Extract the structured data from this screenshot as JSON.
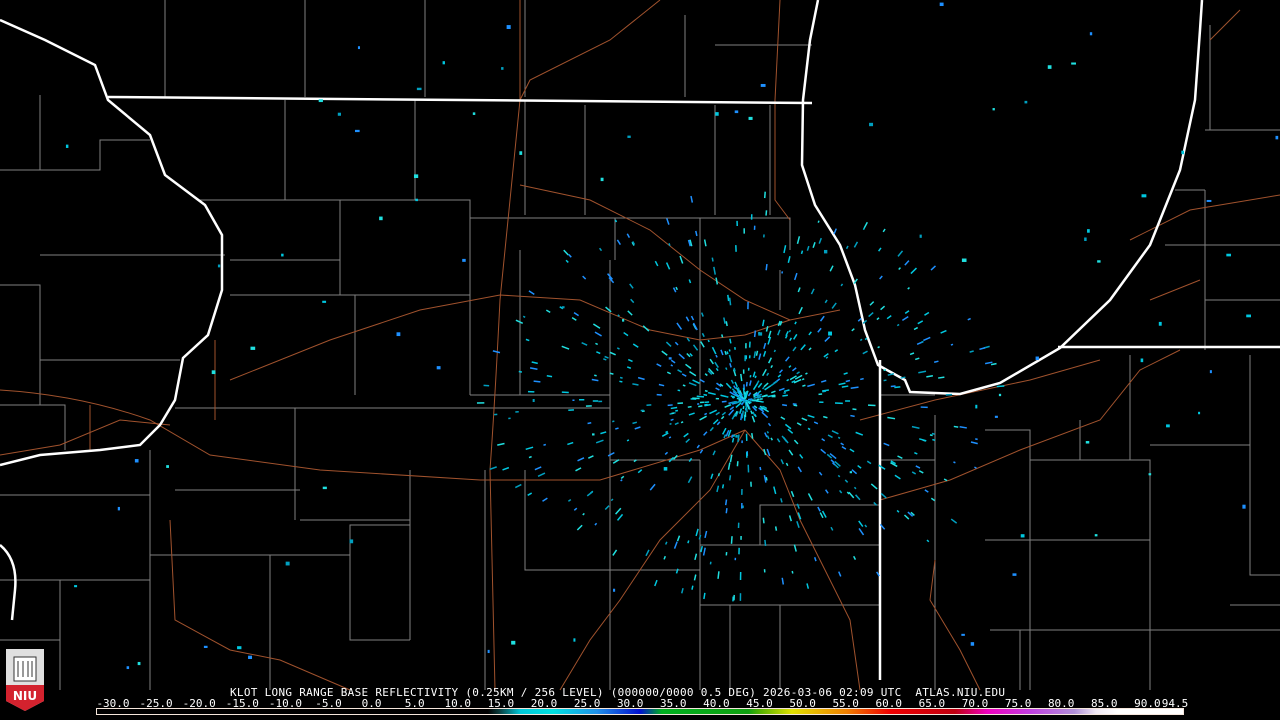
{
  "product": {
    "station": "KLOT",
    "title_line": "KLOT LONG RANGE BASE REFLECTIVITY (0.25KM / 256 LEVEL) (000000/0000 0.5 DEG) 2026-03-06 02:09 UTC  ATLAS.NIU.EDU",
    "product_name": "LONG RANGE BASE REFLECTIVITY",
    "resolution": "0.25KM / 256 LEVEL",
    "elevation": "0.5 DEG",
    "datetime": "2026-03-06 02:09 UTC",
    "source": "ATLAS.NIU.EDU"
  },
  "logo": {
    "text": "NIU",
    "color": "#d3222e"
  },
  "colorbar": {
    "unit_values": [
      "-30.0",
      "-25.0",
      "-20.0",
      "-15.0",
      "-10.0",
      "-5.0",
      "0.0",
      "5.0",
      "10.0",
      "15.0",
      "20.0",
      "25.0",
      "30.0",
      "35.0",
      "40.0",
      "45.0",
      "50.0",
      "55.0",
      "60.0",
      "65.0",
      "70.0",
      "75.0",
      "80.0",
      "85.0",
      "90.0",
      "94.5"
    ],
    "colors": [
      "#000000",
      "#000000",
      "#000000",
      "#000000",
      "#000000",
      "#000000",
      "#0a2a2a",
      "#00c8d8",
      "#2090e8",
      "#0010d0",
      "#00b020",
      "#10a010",
      "#50b000",
      "#e0e000",
      "#e8c000",
      "#f08000",
      "#f00000",
      "#d00000",
      "#c00010",
      "#f000c0",
      "#c040e0",
      "#b090d8",
      "#f0e8f4",
      "#ffffff",
      "#ffffff",
      "#ffffff"
    ]
  },
  "map": {
    "background": "#000000",
    "state_border_color": "#ffffff",
    "county_line_color": "#808080",
    "road_color": "#a0522d",
    "echo_colors": [
      "#00c8e0",
      "#1e90ff",
      "#00a0c0",
      "#20e0e0"
    ]
  }
}
